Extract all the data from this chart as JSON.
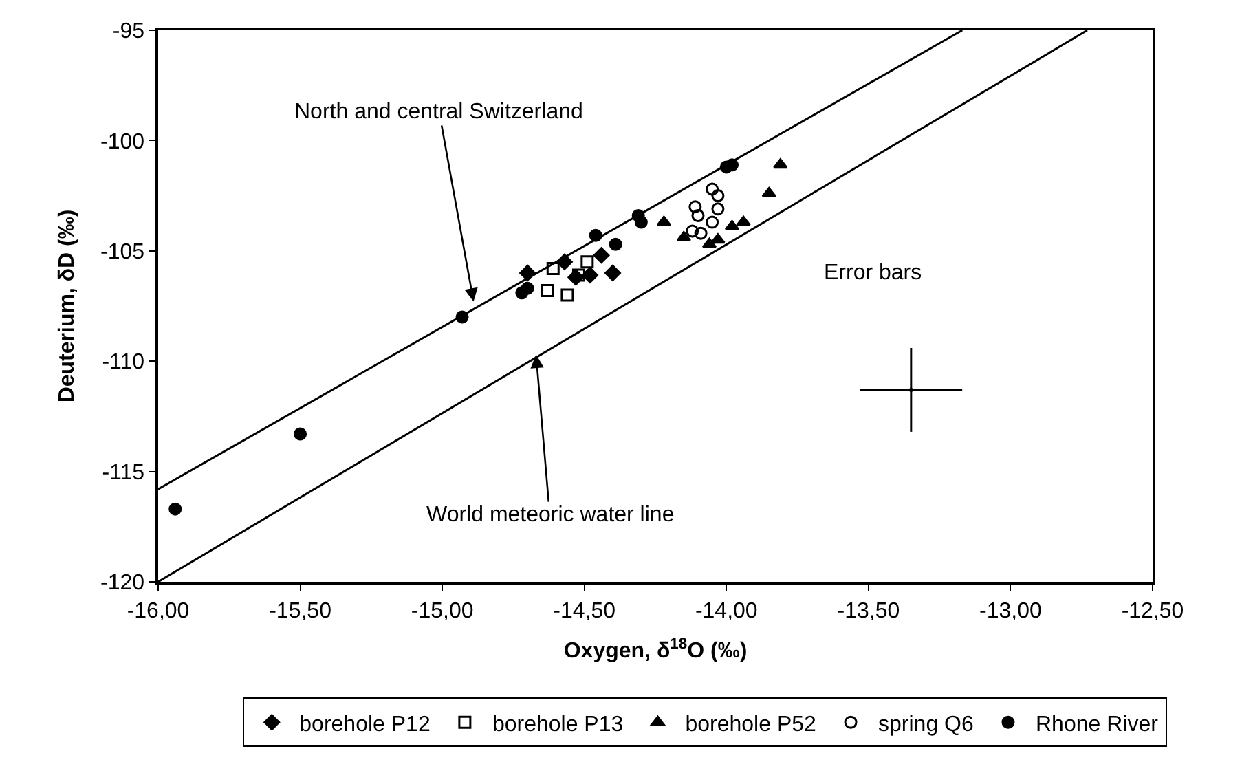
{
  "chart_data": {
    "type": "scatter",
    "xlabel": "Oxygen, δ$^{18}$O (‰)",
    "ylabel": "Deuterium, δD (‰)",
    "xlim": [
      -16,
      -12.5
    ],
    "ylim": [
      -120,
      -95
    ],
    "xticks": [
      {
        "value": -16,
        "label": "-16,00"
      },
      {
        "value": -15.5,
        "label": "-15,50"
      },
      {
        "value": -15,
        "label": "-15,00"
      },
      {
        "value": -14.5,
        "label": "-14,50"
      },
      {
        "value": -14,
        "label": "-14,00"
      },
      {
        "value": -13.5,
        "label": "-13,50"
      },
      {
        "value": -13,
        "label": "-13,00"
      },
      {
        "value": -12.5,
        "label": "-12,50"
      }
    ],
    "yticks": [
      -120,
      -115,
      -110,
      -105,
      -100,
      -95
    ],
    "legend": "bottom",
    "series": [
      {
        "name": "borehole P12",
        "color": "#000000",
        "marker": "diamond",
        "x": [
          -14.7,
          -14.57,
          -14.44,
          -14.4,
          -14.48,
          -14.53
        ],
        "values": [
          -106.0,
          -105.5,
          -105.2,
          -106.0,
          -106.1,
          -106.2
        ]
      },
      {
        "name": "borehole P13",
        "color": "#000000",
        "marker": "square-open",
        "x": [
          -14.49,
          -14.63,
          -14.56,
          -14.61,
          -14.52
        ],
        "values": [
          -105.5,
          -106.8,
          -107.0,
          -105.8,
          -106.1
        ]
      },
      {
        "name": "borehole P52",
        "color": "#000000",
        "marker": "triangle",
        "x": [
          -14.22,
          -13.81,
          -13.85,
          -14.15,
          -14.06,
          -13.98,
          -13.94,
          -14.03
        ],
        "values": [
          -103.7,
          -101.1,
          -102.4,
          -104.4,
          -104.7,
          -103.9,
          -103.7,
          -104.5
        ]
      },
      {
        "name": "spring Q6",
        "color": "#000000",
        "marker": "circle-open",
        "x": [
          -14.05,
          -14.03,
          -14.03,
          -14.11,
          -14.1,
          -14.05,
          -14.09,
          -14.12
        ],
        "values": [
          -102.2,
          -102.5,
          -103.1,
          -103.0,
          -103.4,
          -103.7,
          -104.2,
          -104.1
        ]
      },
      {
        "name": "Rhone River",
        "color": "#000000",
        "marker": "circle",
        "x": [
          -15.94,
          -15.5,
          -14.93,
          -14.72,
          -14.7,
          -14.46,
          -14.39,
          -14.31,
          -14.3,
          -14.0,
          -13.98
        ],
        "values": [
          -116.7,
          -113.3,
          -108.0,
          -106.9,
          -106.7,
          -104.3,
          -104.7,
          -103.4,
          -103.7,
          -101.2,
          -101.1
        ]
      },
      {
        "type": "line",
        "color": "#000000",
        "x": [
          -16,
          -13.17
        ],
        "values": [
          -115.8,
          -95.0
        ]
      },
      {
        "type": "line",
        "color": "#000000",
        "x": [
          -16,
          -12.73
        ],
        "values": [
          -120.0,
          -95.0
        ]
      },
      {
        "color": "#000000",
        "marker": "none",
        "x": [
          -13.35
        ],
        "values": [
          -111.3
        ],
        "errors": [
          1.9
        ],
        "xerrors": [
          0.18
        ]
      }
    ],
    "annotations": [
      {
        "text": "North and central Switzerland",
        "x": -14.89,
        "y": -107.3
      },
      {
        "text": "World meteoric water line",
        "x": -14.67,
        "y": -109.7
      },
      "Error bars"
    ]
  }
}
